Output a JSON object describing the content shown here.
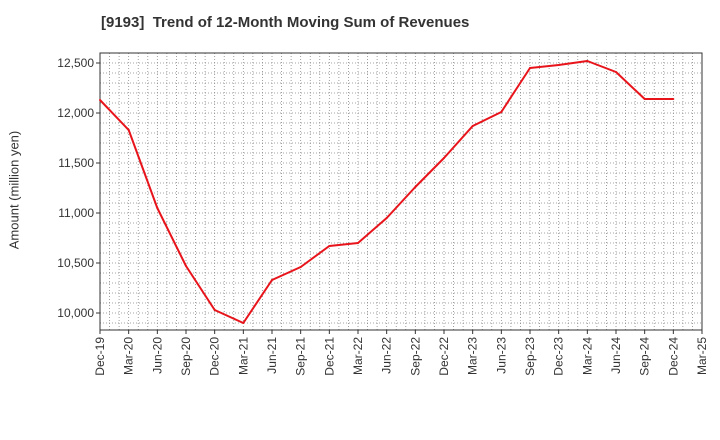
{
  "title": "[9193]  Trend of 12-Month Moving Sum of Revenues",
  "chart_data": {
    "type": "line",
    "title": "[9193]  Trend of 12-Month Moving Sum of Revenues",
    "ylabel": "Amount (million yen)",
    "xlabel": "",
    "ylim": [
      9830,
      12600
    ],
    "yticks": [
      10000,
      10500,
      11000,
      11500,
      12000,
      12500
    ],
    "ytick_labels": [
      "10,000",
      "10,500",
      "11,000",
      "11,500",
      "12,000",
      "12,500"
    ],
    "x_tick_labels": [
      "Dec-19",
      "Mar-20",
      "Jun-20",
      "Sep-20",
      "Dec-20",
      "Mar-21",
      "Jun-21",
      "Sep-21",
      "Dec-21",
      "Mar-22",
      "Jun-22",
      "Sep-22",
      "Dec-22",
      "Mar-23",
      "Jun-23",
      "Sep-23",
      "Dec-23",
      "Mar-24",
      "Jun-24",
      "Sep-24",
      "Dec-24",
      "Mar-25"
    ],
    "grid": true,
    "series": [
      {
        "color": "#e8141b",
        "x": [
          "Dec-19",
          "Mar-20",
          "Jun-20",
          "Sep-20",
          "Dec-20",
          "Mar-21",
          "Jun-21",
          "Sep-21",
          "Dec-21",
          "Mar-22",
          "Jun-22",
          "Sep-22",
          "Dec-22",
          "Mar-23",
          "Jun-23",
          "Sep-23",
          "Dec-23",
          "Mar-24",
          "Jun-24",
          "Sep-24",
          "Dec-24"
        ],
        "values": [
          12130,
          11830,
          11050,
          10470,
          10030,
          9900,
          10330,
          10460,
          10670,
          10700,
          10950,
          11260,
          11550,
          11870,
          12010,
          12450,
          12480,
          12520,
          12410,
          12140,
          12140
        ]
      }
    ]
  }
}
